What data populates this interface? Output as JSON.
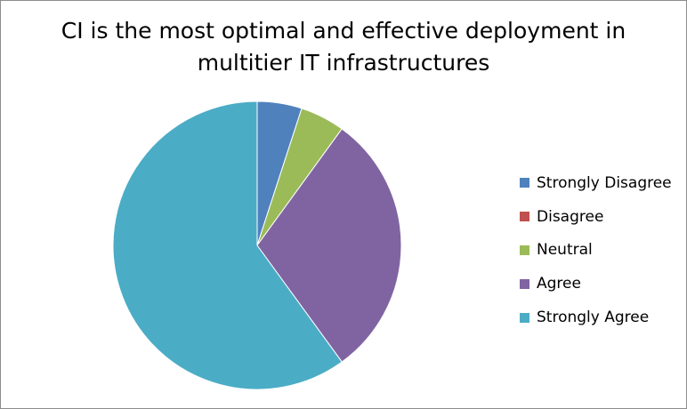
{
  "chart_data": {
    "type": "pie",
    "title_lines": [
      "CI is the most optimal and effective deployment in",
      "multitier IT infrastructures"
    ],
    "categories": [
      "Strongly Disagree",
      "Disagree",
      "Neutral",
      "Agree",
      "Strongly Agree"
    ],
    "values": [
      5,
      0,
      5,
      30,
      60
    ],
    "colors": [
      "#4f81bd",
      "#c0504d",
      "#9bbb59",
      "#8064a2",
      "#4bacc6"
    ],
    "legend_position": "right",
    "start_angle": "12 o'clock",
    "direction": "clockwise"
  }
}
